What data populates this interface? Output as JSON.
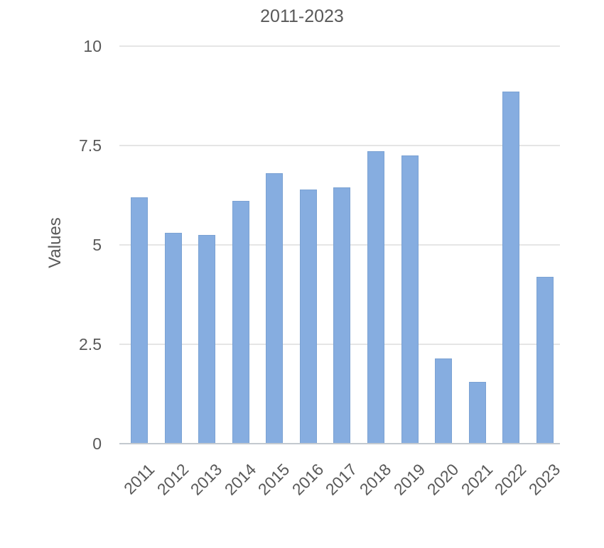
{
  "chart_data": {
    "type": "bar",
    "title": "2011-2023",
    "categories": [
      "2011",
      "2012",
      "2013",
      "2014",
      "2015",
      "2016",
      "2017",
      "2018",
      "2019",
      "2020",
      "2021",
      "2022",
      "2023"
    ],
    "values": [
      6.2,
      5.3,
      5.25,
      6.1,
      6.8,
      6.4,
      6.45,
      7.35,
      7.25,
      2.15,
      1.55,
      8.85,
      4.2
    ],
    "xlabel": "",
    "ylabel": "Values",
    "ylim": [
      0,
      10
    ],
    "yticks": [
      0,
      2.5,
      5,
      7.5,
      10
    ],
    "ytick_labels": [
      "0",
      "2.5",
      "5",
      "7.5",
      "10"
    ],
    "legend": "none",
    "grid": "horizontal-only",
    "bar_color": "#86ADE0",
    "bar_edge_color": "#7BA2D3",
    "text_color": "#595959",
    "gridline_color": "#e5e5e5",
    "axis_line_color": "#c3c9cf"
  }
}
